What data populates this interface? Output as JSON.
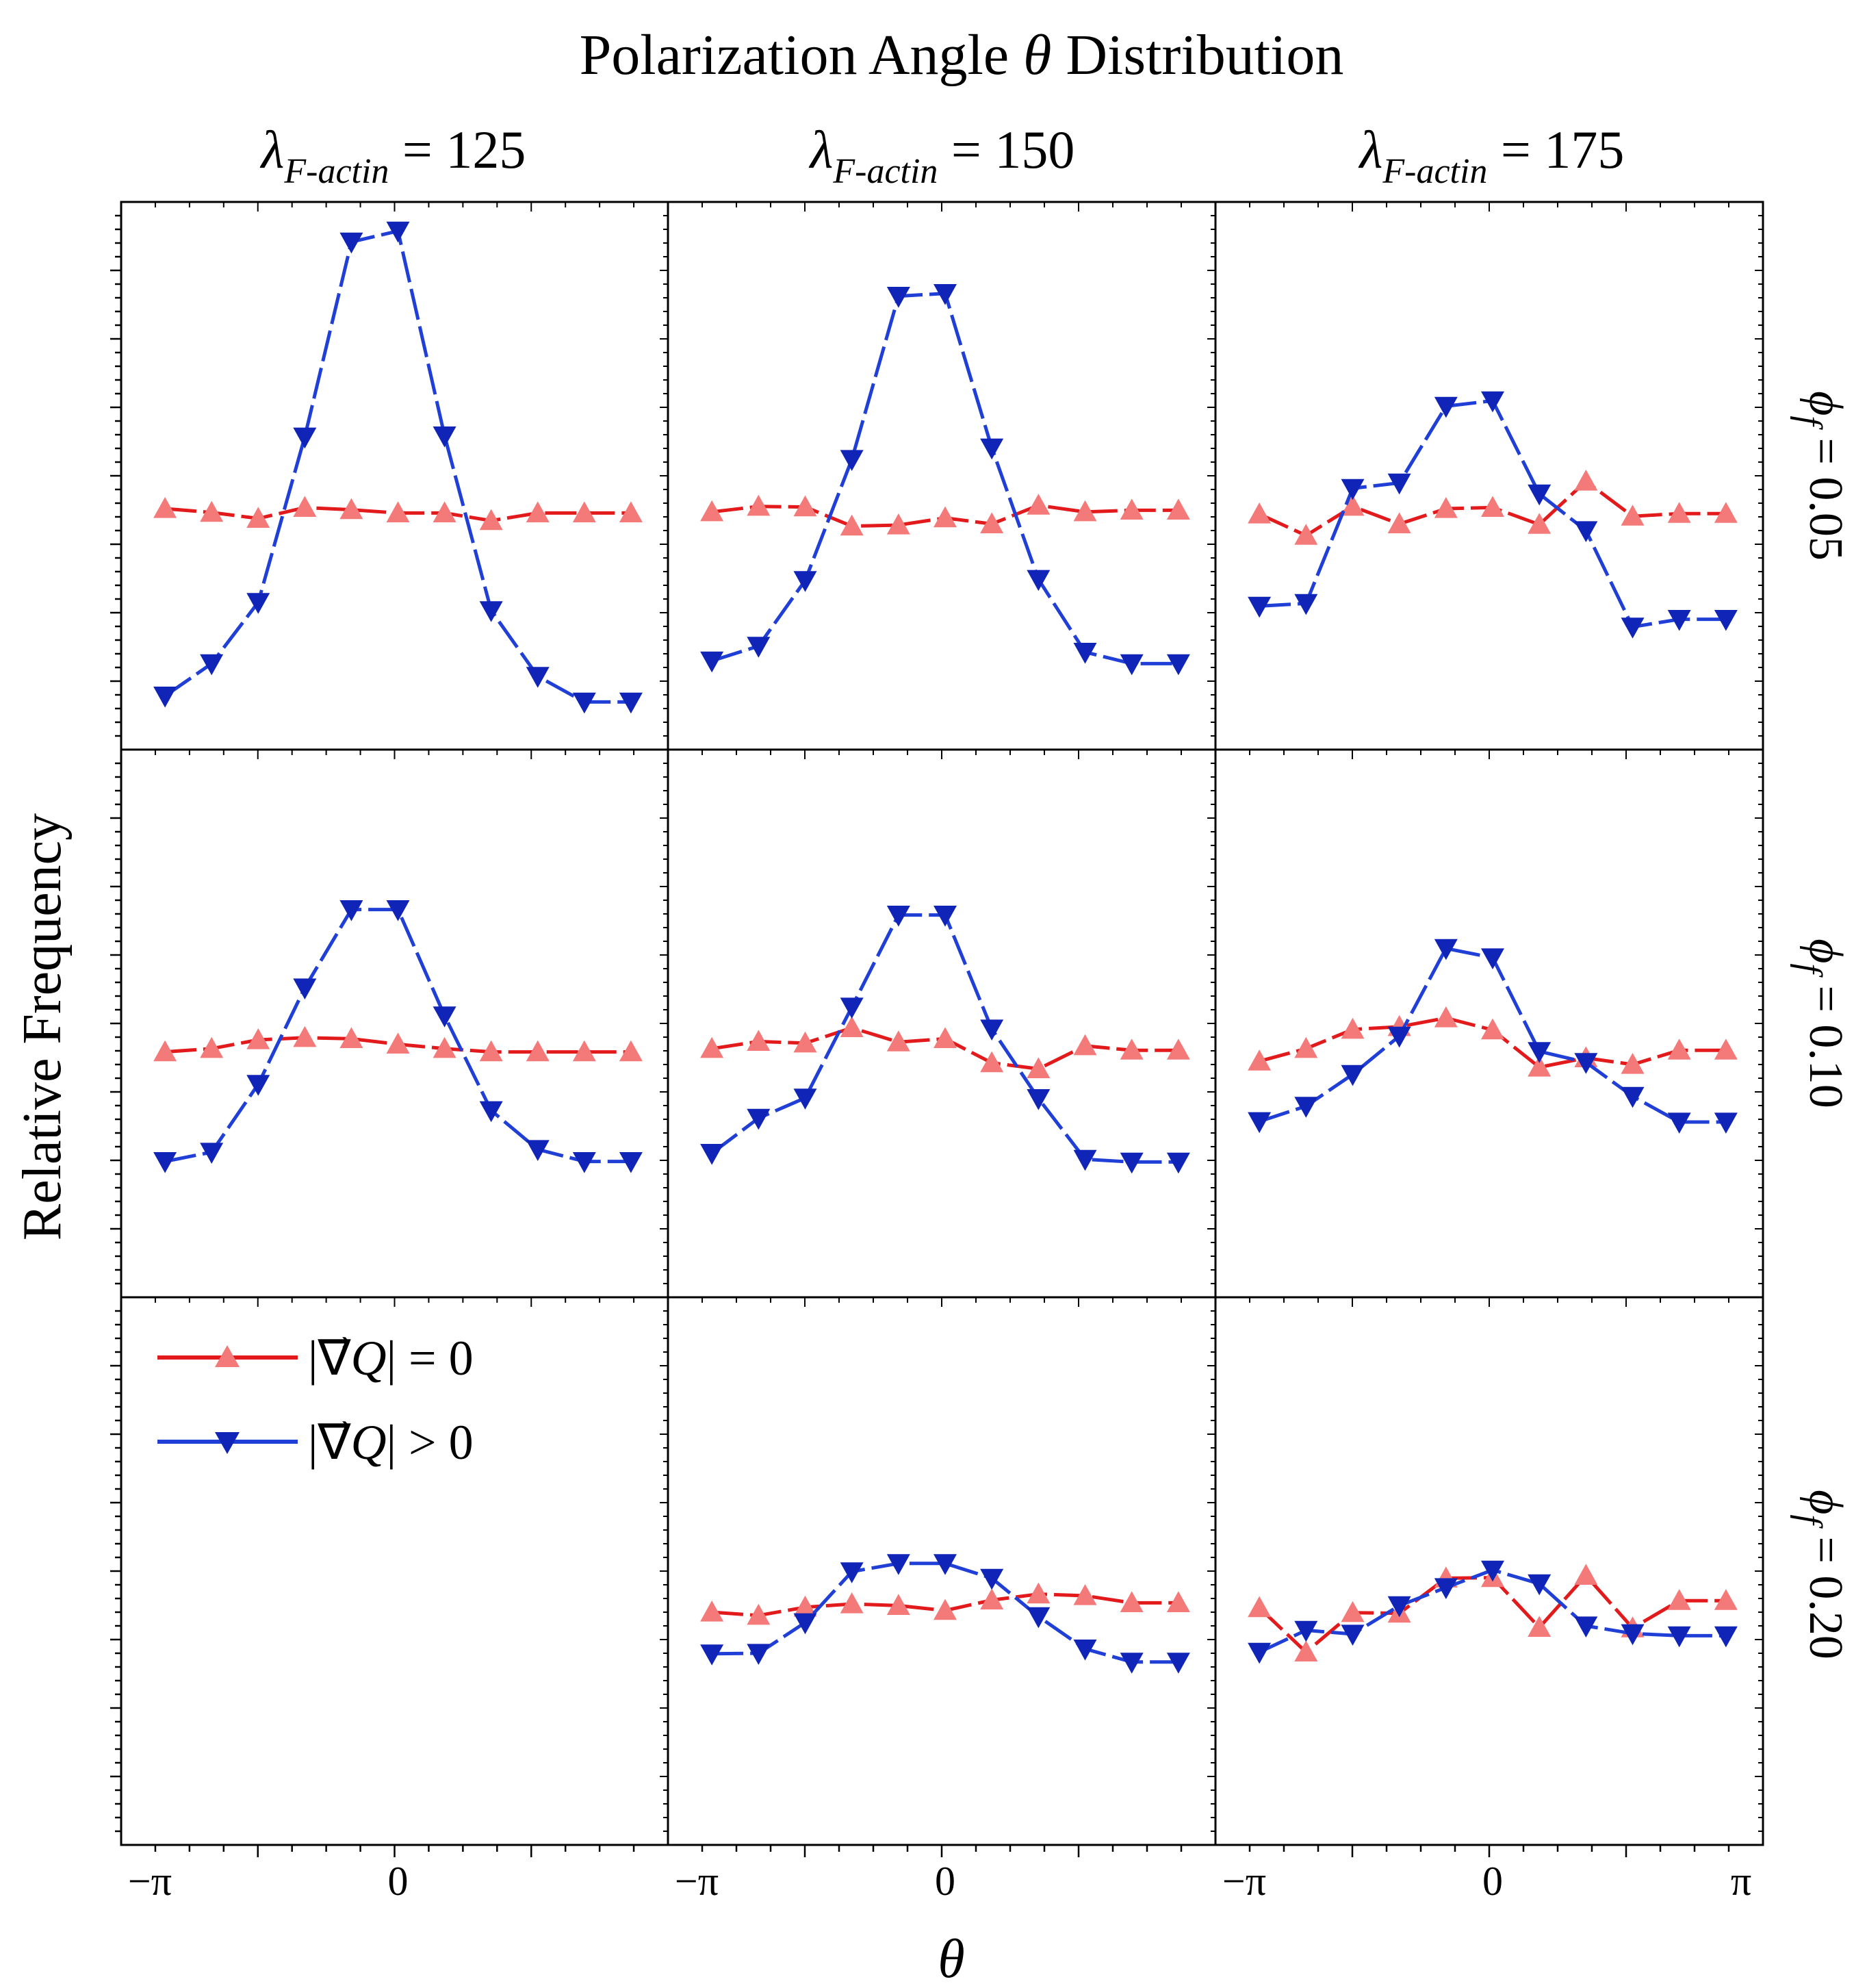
{
  "chart_data": {
    "type": "line",
    "title": "Polarization Angle θ Distribution",
    "title_parts": {
      "before": "Polarization Angle ",
      "symbol": "θ",
      "after": " Distribution"
    },
    "xlabel": "θ",
    "ylabel": "Relative Frequency",
    "xlim": [
      -3.14159,
      3.14159
    ],
    "ylim": [
      0,
      1
    ],
    "x_ticks": [
      {
        "label": "−π",
        "value": -3.14159
      },
      {
        "label": "0",
        "value": 0
      },
      {
        "label": "π",
        "value": 3.14159
      }
    ],
    "columns": [
      {
        "symbol": "λ",
        "subscript": "F-actin",
        "rest": " = 125"
      },
      {
        "symbol": "λ",
        "subscript": "F-actin",
        "rest": " = 150"
      },
      {
        "symbol": "λ",
        "subscript": "F-actin",
        "rest": " = 175"
      }
    ],
    "rows": [
      {
        "symbol": "ϕ",
        "subscript": "f",
        "rest": " = 0.05"
      },
      {
        "symbol": "ϕ",
        "subscript": "f",
        "rest": " = 0.10"
      },
      {
        "symbol": "ϕ",
        "subscript": "f",
        "rest": " = 0.20"
      }
    ],
    "x": [
      -2.95,
      -2.36,
      -1.77,
      -1.18,
      -0.59,
      0.0,
      0.59,
      1.18,
      1.77,
      2.36,
      2.95
    ],
    "series_defs": [
      {
        "name": "|∇⃗Q| = 0",
        "label_start": "|∇⃗",
        "label_italic": "Q",
        "label_end": "| = 0",
        "line_color": "#e31a1c",
        "marker_color": "#f47a7a",
        "marker": "triangle-up"
      },
      {
        "name": "|∇⃗Q| > 0",
        "label_start": "|∇⃗",
        "label_italic": "Q",
        "label_end": "| > 0",
        "line_color": "#1f3fd6",
        "marker_color": "#1024b8",
        "marker": "triangle-down"
      }
    ],
    "panels": [
      {
        "row": 0,
        "col": 0,
        "series": [
          [
            0.44,
            0.433,
            0.422,
            0.442,
            0.438,
            0.432,
            0.432,
            0.418,
            0.432,
            0.432,
            0.432
          ],
          [
            0.098,
            0.157,
            0.269,
            0.571,
            0.927,
            0.947,
            0.573,
            0.254,
            0.134,
            0.087,
            0.087
          ]
        ]
      },
      {
        "row": 0,
        "col": 1,
        "series": [
          [
            0.434,
            0.444,
            0.443,
            0.408,
            0.41,
            0.423,
            0.412,
            0.446,
            0.434,
            0.437,
            0.437
          ],
          [
            0.162,
            0.189,
            0.309,
            0.53,
            0.828,
            0.833,
            0.551,
            0.311,
            0.178,
            0.157,
            0.157
          ]
        ]
      },
      {
        "row": 0,
        "col": 2,
        "series": [
          [
            0.43,
            0.391,
            0.444,
            0.412,
            0.44,
            0.442,
            0.411,
            0.49,
            0.426,
            0.431,
            0.431
          ],
          [
            0.262,
            0.267,
            0.477,
            0.487,
            0.627,
            0.637,
            0.467,
            0.4,
            0.224,
            0.238,
            0.238
          ]
        ]
      },
      {
        "row": 1,
        "col": 0,
        "series": [
          [
            0.448,
            0.454,
            0.47,
            0.474,
            0.472,
            0.462,
            0.454,
            0.448,
            0.448,
            0.448,
            0.448
          ],
          [
            0.248,
            0.265,
            0.389,
            0.565,
            0.708,
            0.708,
            0.514,
            0.341,
            0.27,
            0.248,
            0.248
          ]
        ]
      },
      {
        "row": 1,
        "col": 1,
        "series": [
          [
            0.454,
            0.467,
            0.464,
            0.492,
            0.466,
            0.472,
            0.428,
            0.417,
            0.459,
            0.451,
            0.451
          ],
          [
            0.263,
            0.327,
            0.364,
            0.53,
            0.698,
            0.698,
            0.49,
            0.363,
            0.252,
            0.247,
            0.247
          ]
        ]
      },
      {
        "row": 1,
        "col": 2,
        "series": [
          [
            0.431,
            0.454,
            0.489,
            0.494,
            0.51,
            0.488,
            0.42,
            0.437,
            0.425,
            0.451,
            0.451
          ],
          [
            0.321,
            0.349,
            0.407,
            0.477,
            0.637,
            0.62,
            0.449,
            0.429,
            0.367,
            0.32,
            0.32
          ]
        ]
      },
      {
        "row": 2,
        "col": 1,
        "series": [
          [
            0.425,
            0.419,
            0.434,
            0.44,
            0.437,
            0.428,
            0.447,
            0.458,
            0.455,
            0.442,
            0.442
          ],
          [
            0.349,
            0.35,
            0.406,
            0.499,
            0.514,
            0.514,
            0.487,
            0.417,
            0.358,
            0.334,
            0.334
          ]
        ]
      },
      {
        "row": 2,
        "col": 2,
        "series": [
          [
            0.433,
            0.352,
            0.424,
            0.423,
            0.487,
            0.488,
            0.397,
            0.492,
            0.396,
            0.446,
            0.446
          ],
          [
            0.352,
            0.392,
            0.385,
            0.437,
            0.47,
            0.502,
            0.477,
            0.4,
            0.386,
            0.382,
            0.382
          ]
        ]
      }
    ]
  }
}
